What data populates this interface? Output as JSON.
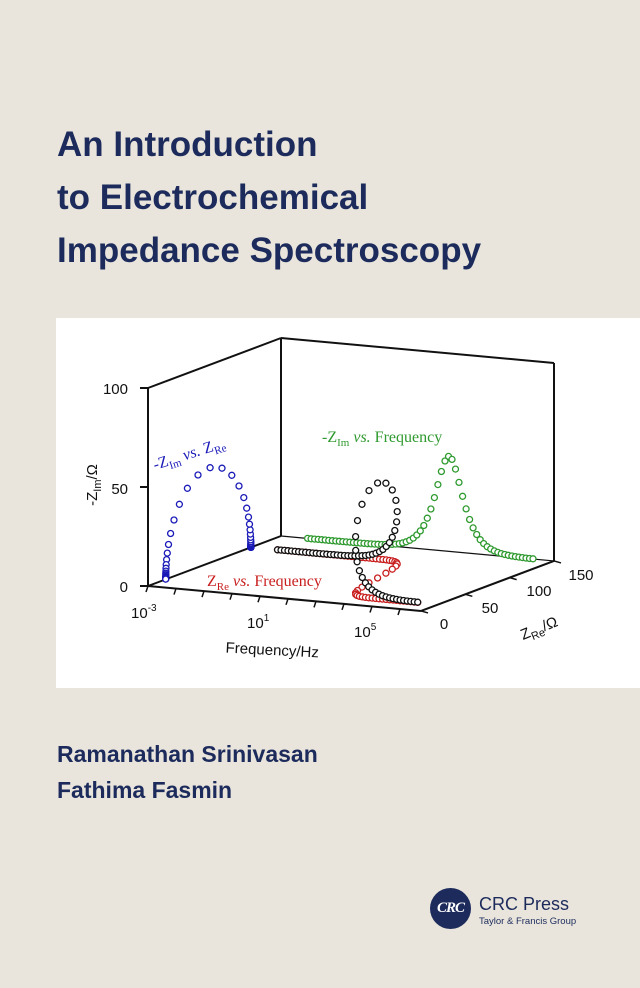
{
  "cover": {
    "title_lines": [
      "An Introduction",
      "to Electrochemical",
      "Impedance Spectroscopy"
    ],
    "authors": [
      "Ramanathan Srinivasan",
      "Fathima Fasmin"
    ],
    "publisher": {
      "logo_text": "CRC",
      "name": "CRC Press",
      "subtitle": "Taylor & Francis Group"
    },
    "colors": {
      "background": "#e9e5dc",
      "title": "#1c2b5c",
      "blue": "#1a1ab8",
      "green": "#2f9a2f",
      "red": "#c81e1e",
      "black": "#111111"
    }
  },
  "chart_data": {
    "type": "scatter",
    "projection": "3d",
    "axes": {
      "frequency": {
        "label": "Frequency/Hz",
        "scale": "log10",
        "range": [
          -3,
          6.75
        ],
        "ticks": [
          "10",
          "10",
          "10"
        ],
        "tick_exps": [
          "-3",
          "1",
          "5"
        ],
        "tick_values": [
          -3,
          1,
          5
        ]
      },
      "z_re": {
        "label_main": "Z",
        "label_sub": "Re",
        "label_unit": "/Ω",
        "range": [
          0,
          150
        ],
        "ticks": [
          "0",
          "50",
          "100",
          "150"
        ]
      },
      "z_im": {
        "label_main": "-Z",
        "label_sub": "Im",
        "label_unit": "/Ω",
        "range": [
          0,
          100
        ],
        "ticks": [
          "0",
          "50",
          "100"
        ]
      }
    },
    "model": {
      "Rs": 20,
      "Rct": 96,
      "peak_log_freq": 3.0,
      "log_freq_range": [
        -2.05,
        6.0
      ],
      "points_per_decade": 8
    },
    "series": [
      {
        "name": "nyquist",
        "color": "#1a1ab8",
        "label_a": "-Z",
        "label_a_sub": "Im",
        "label_vs": " vs. ",
        "label_b": "Z",
        "label_b_sub": "Re"
      },
      {
        "name": "im_vs_freq",
        "color": "#2f9a2f",
        "label_a": "-Z",
        "label_a_sub": "Im",
        "label_vs": " vs. ",
        "label_b": "Frequency"
      },
      {
        "name": "re_vs_freq",
        "color": "#c81e1e",
        "label_a": "Z",
        "label_a_sub": "Re",
        "label_vs": " vs. ",
        "label_b": "Frequency"
      },
      {
        "name": "3d",
        "color": "#111111"
      }
    ]
  }
}
